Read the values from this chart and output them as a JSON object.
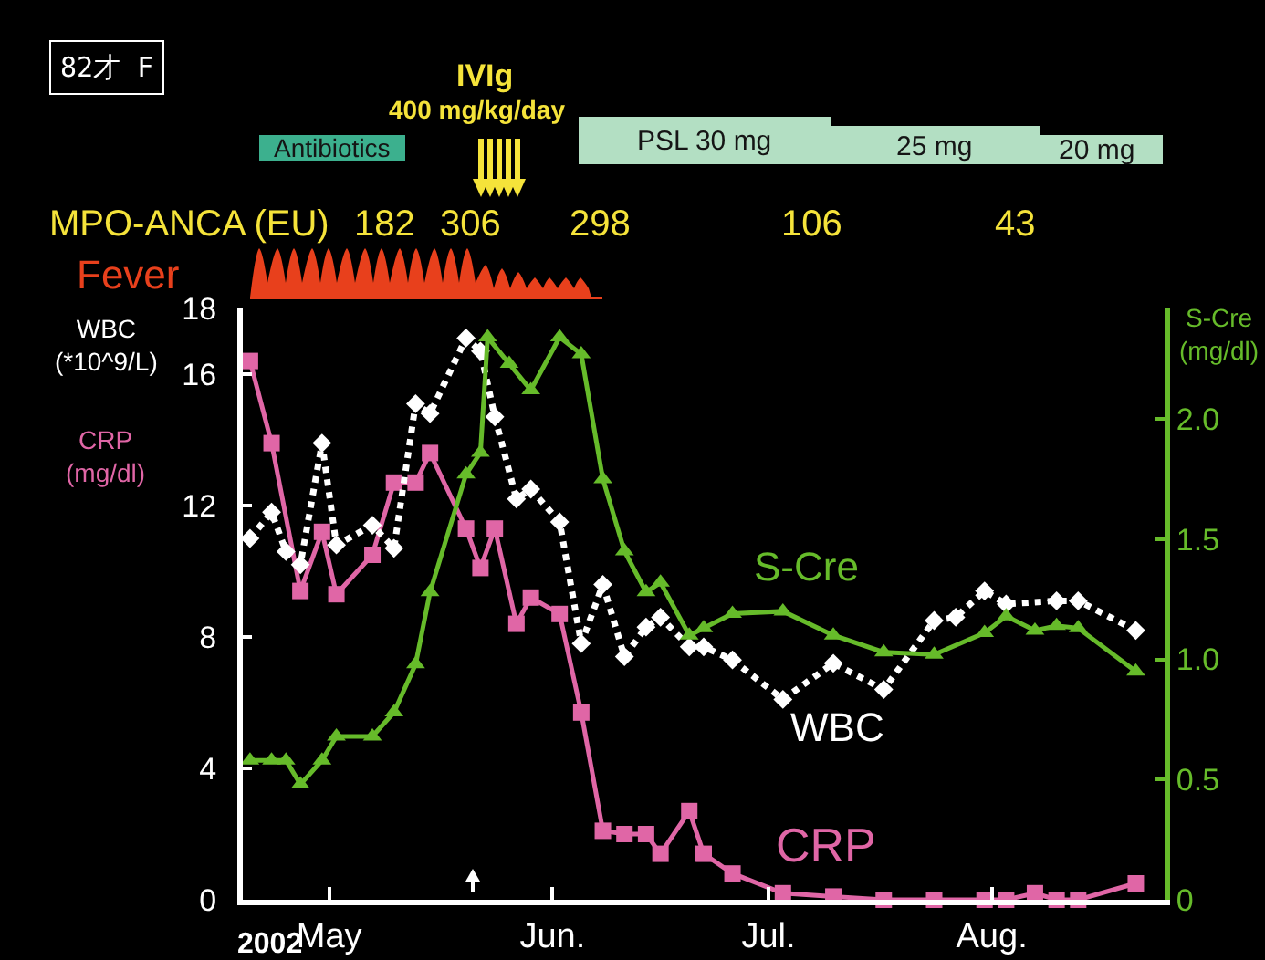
{
  "chart_data": {
    "type": "line",
    "ylabel": "WBC (*10^9/L)",
    "y2label": "S-Cre (mg/dl)",
    "annotations": [
      "82才 F",
      "IVIg",
      "400 mg/kg/day",
      "Antibiotics",
      "PSL 30 mg",
      "25 mg",
      "20 mg",
      "MPO-ANCA (EU)",
      "182",
      "306",
      "298",
      "106",
      "43",
      "Fever",
      "CRP (mg/dl)",
      "2002"
    ],
    "xlim": [
      "2002-04-19",
      "2002-08-25"
    ],
    "xticks": [
      {
        "value": "2002-05-01",
        "label": "May"
      },
      {
        "value": "2002-06-01",
        "label": "Jun."
      },
      {
        "value": "2002-07-01",
        "label": "Jul."
      },
      {
        "value": "2002-08-01",
        "label": "Aug."
      }
    ],
    "ylim": [
      0,
      18
    ],
    "yticks": [
      0,
      4,
      8,
      12,
      16,
      18
    ],
    "y2lim": [
      0,
      2.46
    ],
    "y2ticks": [
      0,
      0.5,
      {
        "value": 1,
        "label": "1.0"
      },
      1.5,
      {
        "value": 2,
        "label": "2.0"
      }
    ],
    "grid": false,
    "series": [
      {
        "name": "CRP",
        "color": "#e066a6",
        "marker": "square",
        "line_style": "solid",
        "x": [
          "2002-04-20",
          "2002-04-23",
          "2002-04-27",
          "2002-04-30",
          "2002-05-02",
          "2002-05-07",
          "2002-05-10",
          "2002-05-13",
          "2002-05-15",
          "2002-05-20",
          "2002-05-22",
          "2002-05-24",
          "2002-05-27",
          "2002-05-29",
          "2002-06-02",
          "2002-06-05",
          "2002-06-08",
          "2002-06-11",
          "2002-06-14",
          "2002-06-16",
          "2002-06-20",
          "2002-06-22",
          "2002-06-26",
          "2002-07-03",
          "2002-07-10",
          "2002-07-17",
          "2002-07-24",
          "2002-07-31",
          "2002-08-03",
          "2002-08-07",
          "2002-08-10",
          "2002-08-13",
          "2002-08-21"
        ],
        "values": [
          16.4,
          13.9,
          9.4,
          11.2,
          9.3,
          10.5,
          12.7,
          12.7,
          13.6,
          11.3,
          10.1,
          11.3,
          8.4,
          9.2,
          8.7,
          5.7,
          2.1,
          2.0,
          2.0,
          1.4,
          2.7,
          1.4,
          0.8,
          0.2,
          0.1,
          0,
          0,
          0,
          0,
          0.2,
          0,
          0,
          0.5
        ]
      },
      {
        "name": "WBC",
        "color": "#ffffff",
        "marker": "diamond",
        "line_style": "dotted",
        "x": [
          "2002-04-20",
          "2002-04-23",
          "2002-04-25",
          "2002-04-27",
          "2002-04-30",
          "2002-05-02",
          "2002-05-07",
          "2002-05-10",
          "2002-05-13",
          "2002-05-15",
          "2002-05-20",
          "2002-05-22",
          "2002-05-24",
          "2002-05-27",
          "2002-05-29",
          "2002-06-02",
          "2002-06-05",
          "2002-06-08",
          "2002-06-11",
          "2002-06-14",
          "2002-06-16",
          "2002-06-20",
          "2002-06-22",
          "2002-06-26",
          "2002-07-03",
          "2002-07-10",
          "2002-07-17",
          "2002-07-24",
          "2002-07-27",
          "2002-07-31",
          "2002-08-03",
          "2002-08-10",
          "2002-08-13",
          "2002-08-21"
        ],
        "values": [
          11.0,
          11.8,
          10.6,
          10.2,
          13.9,
          10.8,
          11.4,
          10.7,
          15.1,
          14.8,
          17.1,
          16.7,
          14.7,
          12.2,
          12.5,
          11.5,
          7.8,
          9.6,
          7.4,
          8.3,
          8.6,
          7.7,
          7.7,
          7.3,
          6.1,
          7.2,
          6.4,
          8.5,
          8.6,
          9.4,
          9.0,
          9.1,
          9.1,
          8.2
        ]
      },
      {
        "name": "S-Cre",
        "color": "#66bb2a",
        "marker": "triangle",
        "line_style": "solid",
        "axis": "y2",
        "x": [
          "2002-04-20",
          "2002-04-23",
          "2002-04-25",
          "2002-04-27",
          "2002-04-30",
          "2002-05-02",
          "2002-05-07",
          "2002-05-10",
          "2002-05-13",
          "2002-05-15",
          "2002-05-20",
          "2002-05-22",
          "2002-05-23",
          "2002-05-26",
          "2002-05-29",
          "2002-06-02",
          "2002-06-05",
          "2002-06-08",
          "2002-06-11",
          "2002-06-14",
          "2002-06-16",
          "2002-06-20",
          "2002-06-22",
          "2002-06-26",
          "2002-07-03",
          "2002-07-10",
          "2002-07-17",
          "2002-07-24",
          "2002-07-31",
          "2002-08-03",
          "2002-08-07",
          "2002-08-10",
          "2002-08-13",
          "2002-08-21"
        ],
        "values": [
          0.58,
          0.58,
          0.58,
          0.48,
          0.58,
          0.68,
          0.68,
          0.78,
          0.98,
          1.28,
          1.77,
          1.86,
          2.34,
          2.23,
          2.12,
          2.34,
          2.27,
          1.75,
          1.45,
          1.28,
          1.32,
          1.1,
          1.13,
          1.19,
          1.2,
          1.1,
          1.03,
          1.02,
          1.11,
          1.18,
          1.12,
          1.14,
          1.13,
          0.95
        ]
      }
    ]
  }
}
